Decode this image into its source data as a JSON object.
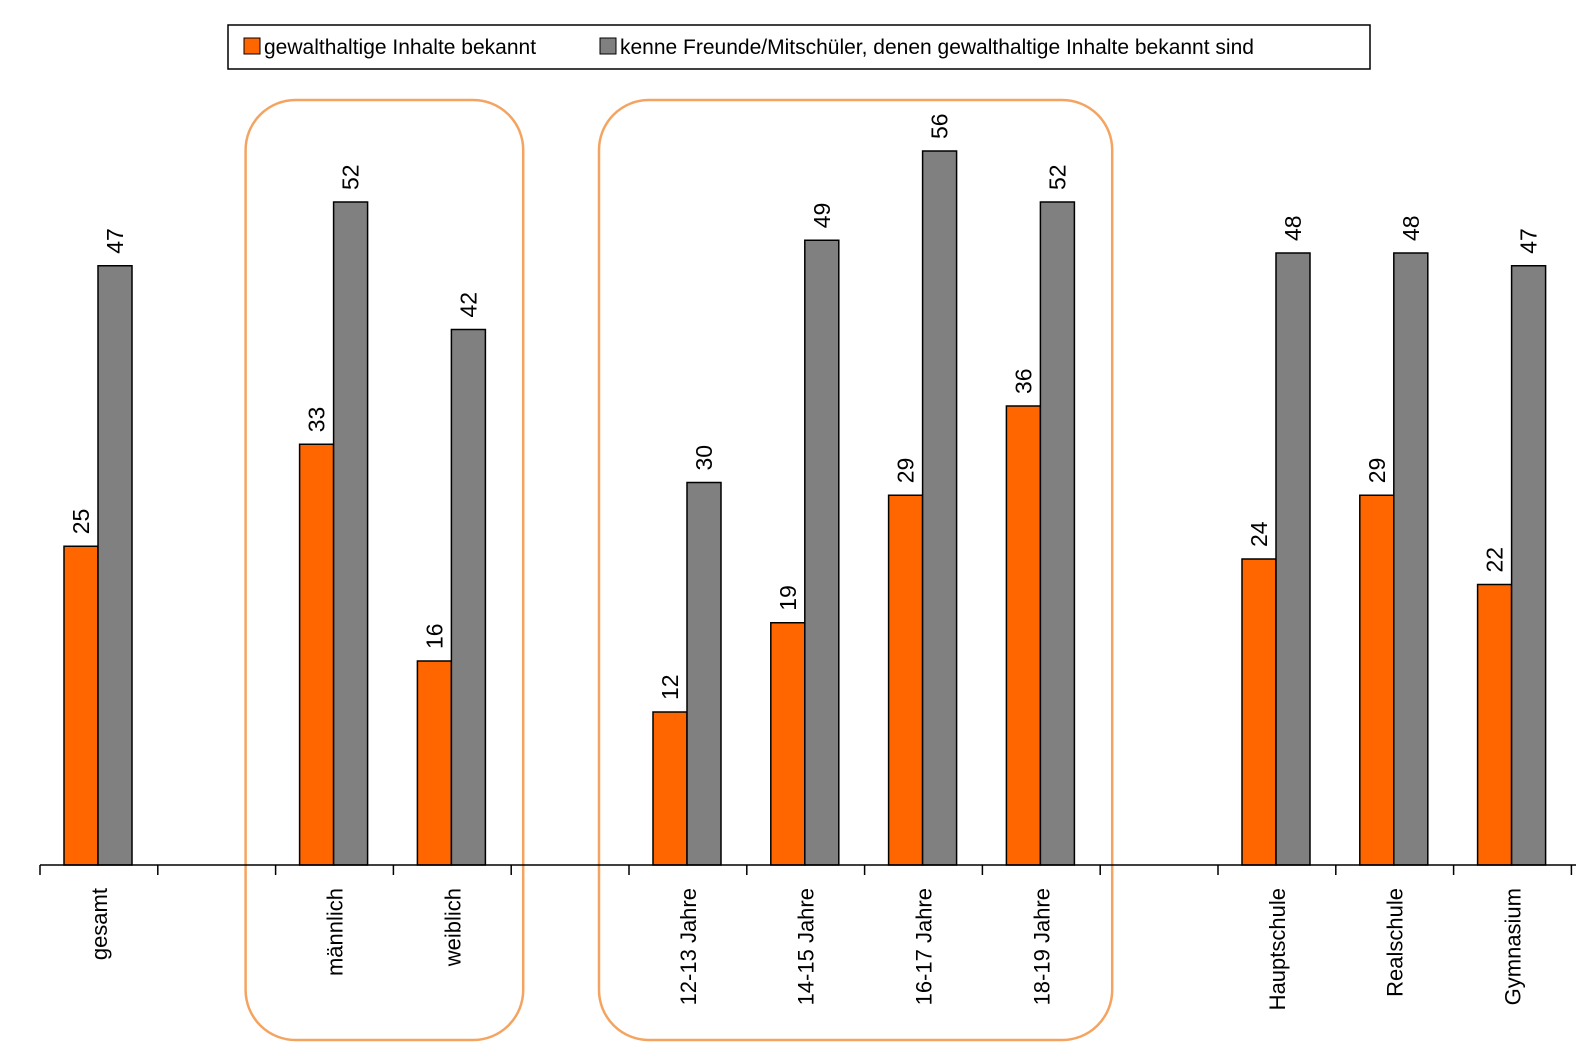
{
  "chart_data": {
    "type": "bar",
    "categories": [
      "gesamt",
      "",
      "männlich",
      "weiblich",
      "",
      "12-13 Jahre",
      "14-15 Jahre",
      "16-17 Jahre",
      "18-19 Jahre",
      "",
      "Hauptschule",
      "Realschule",
      "Gymnasium"
    ],
    "series": [
      {
        "name": "gewalthaltige Inhalte bekannt",
        "color": "#ff6600",
        "values": [
          25,
          null,
          33,
          16,
          null,
          12,
          19,
          29,
          36,
          null,
          24,
          29,
          22
        ]
      },
      {
        "name": "kenne Freunde/Mitschüler, denen gewalthaltige Inhalte bekannt sind",
        "color": "#808080",
        "values": [
          47,
          null,
          52,
          42,
          null,
          30,
          49,
          56,
          52,
          null,
          48,
          48,
          47
        ]
      }
    ],
    "ylim": [
      0,
      68
    ],
    "grid": false,
    "legend_position": "top",
    "group_frame_color": "#f4a460",
    "framed_groups": [
      [
        "männlich",
        "weiblich"
      ],
      [
        "12-13 Jahre",
        "14-15 Jahre",
        "16-17 Jahre",
        "18-19 Jahre"
      ]
    ]
  }
}
